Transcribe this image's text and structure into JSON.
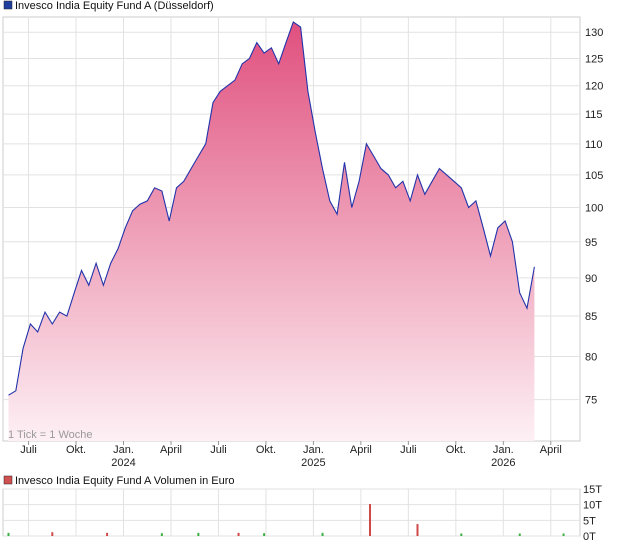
{
  "main_chart": {
    "legend_label": "Invesco India Equity Fund A (Düsseldorf)",
    "legend_color": "#1f3f9f",
    "tick_note": "1 Tick = 1 Woche",
    "line_color": "#2233aa",
    "fill_top_color": "#e0507e",
    "fill_bottom_color": "#fdf0f4"
  },
  "volume_chart": {
    "legend_label": "Invesco India Equity Fund A Volumen in Euro",
    "legend_color": "#d05050",
    "y_tick_labels": [
      "15T",
      "10T",
      "5T",
      "0T"
    ]
  },
  "chart_data": [
    {
      "type": "area",
      "x_tick_labels": [
        "Juli",
        "Okt.",
        "Jan.",
        "April",
        "Juli",
        "Okt.",
        "Jan.",
        "April",
        "Juli",
        "Okt.",
        "Jan.",
        "April"
      ],
      "x_year_labels": [
        "2024",
        "2025",
        "2026"
      ],
      "y_tick_labels": [
        "130",
        "125",
        "120",
        "115",
        "110",
        "105",
        "100",
        "95",
        "90",
        "85",
        "80",
        "75"
      ],
      "y_scale": "log",
      "ylim": [
        70.5,
        133
      ],
      "grid": true,
      "x_weeks": [
        0,
        2,
        4,
        6,
        8,
        10,
        12,
        14,
        16,
        18,
        20,
        22,
        24,
        26,
        28,
        30,
        32,
        34,
        36,
        38,
        40,
        42,
        44,
        46,
        48,
        50,
        52,
        54,
        56,
        58,
        60,
        62,
        64,
        66,
        68,
        70,
        72,
        74,
        76,
        78,
        80,
        82,
        84,
        86,
        88,
        90,
        92,
        94,
        96,
        98,
        100,
        102,
        104,
        106,
        108,
        110,
        112,
        114,
        116,
        118,
        120,
        122,
        124,
        126,
        128,
        130,
        132,
        134,
        136,
        138,
        140,
        142,
        144,
        146,
        148,
        150,
        152,
        154,
        156
      ],
      "values": [
        75.5,
        76,
        81,
        84,
        83,
        85.5,
        84,
        85.5,
        85,
        88,
        91,
        89,
        92,
        89,
        92,
        94,
        97,
        99.5,
        100.5,
        101,
        103,
        102.5,
        98,
        103,
        104,
        106,
        108,
        110,
        117,
        119,
        120,
        121,
        124,
        125,
        128,
        126,
        127,
        124,
        128,
        132,
        131,
        119,
        112,
        106,
        101,
        99,
        107,
        100,
        104,
        110,
        108,
        106,
        105,
        103,
        104,
        101,
        105,
        102,
        104,
        106,
        105,
        104,
        103,
        100,
        101,
        97,
        93,
        97,
        98,
        95,
        88,
        86,
        91.5,
        91.5,
        91.5,
        91.5,
        91.5,
        91.5,
        91.5
      ]
    },
    {
      "type": "bar",
      "ylabel": "Volumen in Euro",
      "ylim": [
        0,
        15
      ],
      "y_ticks": [
        0,
        5,
        10,
        15
      ],
      "bars": [
        {
          "week": 0,
          "value": 1.0,
          "color": "green"
        },
        {
          "week": 12,
          "value": 1.2,
          "color": "red"
        },
        {
          "week": 27,
          "value": 1.0,
          "color": "red"
        },
        {
          "week": 42,
          "value": 0.9,
          "color": "green"
        },
        {
          "week": 52,
          "value": 1.0,
          "color": "green"
        },
        {
          "week": 63,
          "value": 1.0,
          "color": "red"
        },
        {
          "week": 70,
          "value": 0.9,
          "color": "green"
        },
        {
          "week": 86,
          "value": 1.0,
          "color": "green"
        },
        {
          "week": 99,
          "value": 10.2,
          "color": "red"
        },
        {
          "week": 112,
          "value": 3.8,
          "color": "red"
        },
        {
          "week": 124,
          "value": 0.8,
          "color": "green"
        },
        {
          "week": 140,
          "value": 0.8,
          "color": "green"
        },
        {
          "week": 152,
          "value": 0.8,
          "color": "green"
        }
      ]
    }
  ]
}
